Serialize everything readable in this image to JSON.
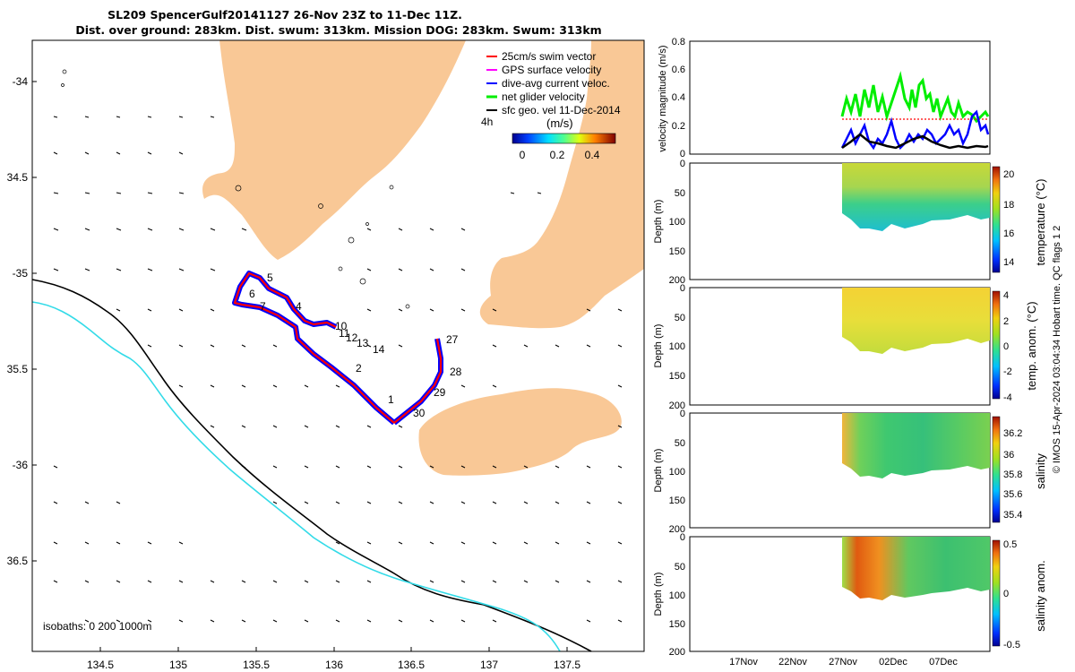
{
  "title": {
    "line1": "SL209 SpencerGulf20141127 26-Nov 23Z to 11-Dec 11Z.",
    "line2": "Dist. over ground: 283km. Dist. swum: 313km. Mission DOG: 283km. Swum: 313km"
  },
  "map": {
    "lon_ticks": [
      "134.5",
      "135",
      "135.5",
      "136",
      "136.5",
      "137",
      "137.5"
    ],
    "lat_ticks": [
      "-34",
      "34.5",
      "-35",
      "35.5",
      "-36",
      "36.5"
    ],
    "isobaths_label": "isobaths: 0   200  1000m",
    "legend": [
      {
        "label": "25cm/s swim vector",
        "color": "#ff0000"
      },
      {
        "label": "GPS surface velocity",
        "color": "#ff00ff"
      },
      {
        "label": "dive-avg current veloc.",
        "color": "#0000ff"
      },
      {
        "label": "net glider velocity",
        "color": "#00ee00"
      },
      {
        "label": "sfc geo. vel 11-Dec-2014",
        "color": "#000000"
      }
    ],
    "arrow_scale_label": "4h",
    "colorbar": {
      "title": "(m/s)",
      "ticks": [
        "0",
        "0.2",
        "0.4"
      ]
    },
    "waypoints": [
      "1",
      "2",
      "4",
      "5",
      "6",
      "7",
      "10",
      "11",
      "12",
      "13",
      "14",
      "27",
      "28",
      "29",
      "30"
    ],
    "colors": {
      "land": "#f9c896",
      "isobath_200": "#33dbe8",
      "isobath_1000": "#000000",
      "track": "#ff0000",
      "track_current": "#0000ff"
    }
  },
  "panels": {
    "velocity": {
      "ylabel": "velocity magnitude (m/s)",
      "yticks": [
        "0",
        "0.2",
        "0.4",
        "0.6",
        "0.8"
      ],
      "ylim": [
        0,
        0.8
      ]
    },
    "temperature": {
      "ylabel": "Depth (m)",
      "cbar_label": "temperature (°C)",
      "cbar_ticks": [
        "20",
        "18",
        "16",
        "14"
      ]
    },
    "temp_anom": {
      "ylabel": "Depth (m)",
      "cbar_label": "temp. anom. (°C)",
      "cbar_ticks": [
        "4",
        "2",
        "0",
        "-2",
        "-4"
      ]
    },
    "salinity": {
      "ylabel": "Depth (m)",
      "cbar_label": "salinity",
      "cbar_ticks": [
        "36.2",
        "36",
        "35.8",
        "35.6",
        "35.4"
      ]
    },
    "sal_anom": {
      "ylabel": "Depth (m)",
      "cbar_label": "salinity anom.",
      "cbar_ticks": [
        "0.5",
        "0",
        "-0.5"
      ]
    },
    "depth_ticks": [
      "0",
      "50",
      "100",
      "150",
      "200"
    ],
    "x_ticks": [
      "17Nov",
      "22Nov",
      "27Nov",
      "02Dec",
      "07Dec"
    ]
  },
  "credit": "© IMOS 15-Apr-2024 03:04:34 Hobart time. QC flags 1  2"
}
